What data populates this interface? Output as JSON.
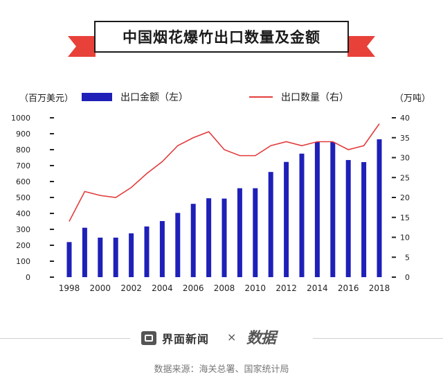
{
  "title": "中国烟花爆竹出口数量及金额",
  "left_unit": "（百万美元）",
  "right_unit": "（万吨）",
  "footer": {
    "brand_left": "界面新闻",
    "brand_times": "×",
    "brand_right": "数据",
    "source": "数据来源：海关总署、国家统计局"
  },
  "colors": {
    "bar": "#1e20b8",
    "line": "#e23b3b"
  },
  "chart_data": {
    "type": "bar",
    "categories": [
      "1998",
      "1999",
      "2000",
      "2001",
      "2002",
      "2003",
      "2004",
      "2005",
      "2006",
      "2007",
      "2008",
      "2009",
      "2010",
      "2011",
      "2012",
      "2013",
      "2014",
      "2015",
      "2016",
      "2017",
      "2018"
    ],
    "x_tick_labels": [
      "1998",
      "2000",
      "2002",
      "2004",
      "2006",
      "2008",
      "2010",
      "2012",
      "2014",
      "2016",
      "2018"
    ],
    "series": [
      {
        "name": "出口金额（左）",
        "type": "bar",
        "axis": "left",
        "values": [
          220,
          310,
          248,
          248,
          275,
          318,
          352,
          403,
          460,
          495,
          493,
          558,
          558,
          660,
          723,
          775,
          848,
          848,
          735,
          722,
          865
        ]
      },
      {
        "name": "出口数量（右）",
        "type": "line",
        "axis": "right",
        "values": [
          14,
          21.5,
          20.5,
          20,
          22.5,
          26,
          29,
          33,
          35,
          36.5,
          32,
          30.5,
          30.5,
          33,
          34,
          33,
          34,
          34,
          32,
          33,
          38.5
        ]
      }
    ],
    "y_left": {
      "min": 0,
      "max": 1000,
      "ticks": [
        "0",
        "100",
        "200",
        "300",
        "400",
        "500",
        "600",
        "700",
        "800",
        "900",
        "1000"
      ]
    },
    "y_right": {
      "min": 0,
      "max": 40,
      "ticks": [
        "0",
        "5",
        "10",
        "15",
        "20",
        "25",
        "30",
        "35",
        "40"
      ]
    },
    "grid": false,
    "legend_position": "top"
  }
}
